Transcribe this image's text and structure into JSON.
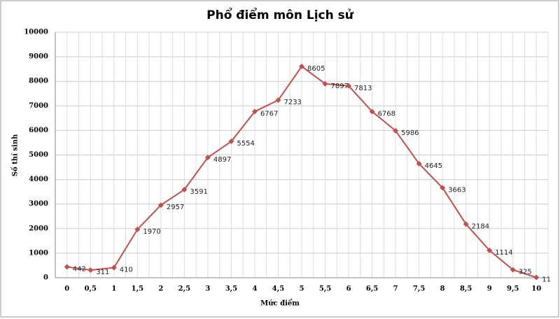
{
  "chart_data": {
    "type": "line",
    "title": "Phổ điểm môn Lịch sử",
    "x_label": "Mức điểm",
    "y_label": "Số thí sinh",
    "categories": [
      "0",
      "0,5",
      "1",
      "1,5",
      "2",
      "2,5",
      "3",
      "3,5",
      "4",
      "4,5",
      "5",
      "5,5",
      "6",
      "6,5",
      "7",
      "7,5",
      "8",
      "8,5",
      "9",
      "9,5",
      "10"
    ],
    "values": [
      442,
      311,
      410,
      1970,
      2957,
      3591,
      4897,
      5554,
      6767,
      7233,
      8605,
      7897,
      7813,
      6768,
      5986,
      4645,
      3663,
      2184,
      1114,
      325,
      11
    ],
    "color": "#c0504d",
    "ylim": [
      0,
      10000
    ],
    "yticks": [
      0,
      1000,
      2000,
      3000,
      4000,
      5000,
      6000,
      7000,
      8000,
      9000,
      10000
    ],
    "grid": true
  }
}
